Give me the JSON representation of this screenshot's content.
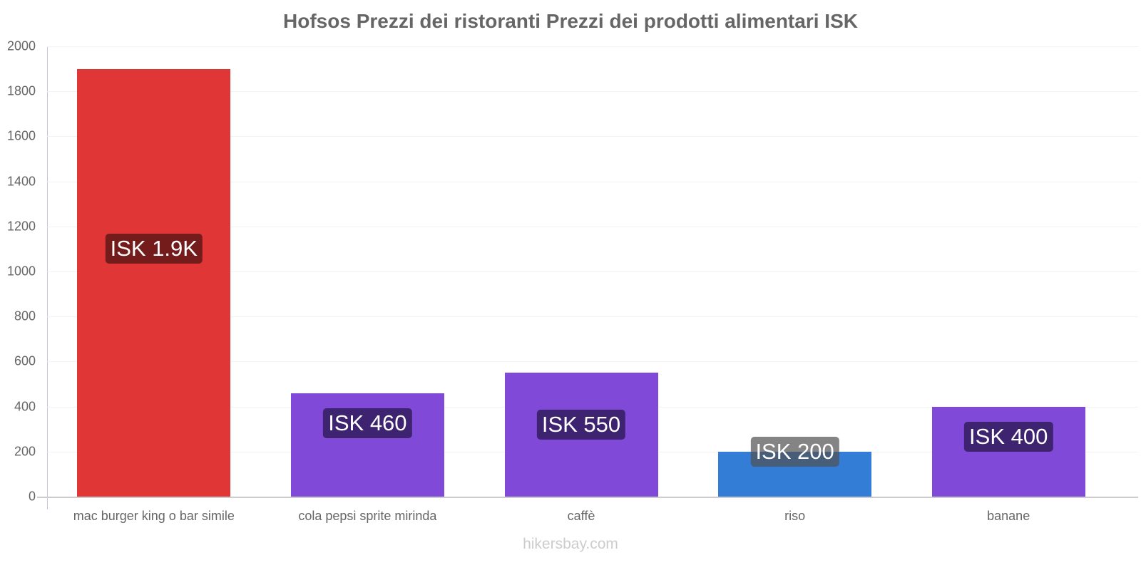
{
  "chart_data": {
    "type": "bar",
    "title": "Hofsos Prezzi dei ristoranti Prezzi dei prodotti alimentari ISK",
    "xlabel": "",
    "ylabel": "",
    "ylim": [
      0,
      2000
    ],
    "yticks": [
      0,
      200,
      400,
      600,
      800,
      1000,
      1200,
      1400,
      1600,
      1800,
      2000
    ],
    "grid": true,
    "legend": null,
    "categories": [
      "mac burger king o bar simile",
      "cola pepsi sprite mirinda",
      "caffè",
      "riso",
      "banane"
    ],
    "values": [
      1900,
      460,
      550,
      200,
      400
    ],
    "data_labels": [
      "ISK 1.9K",
      "ISK 460",
      "ISK 550",
      "ISK 200",
      "ISK 400"
    ],
    "bar_colors": [
      "#e03636",
      "#8049d8",
      "#8049d8",
      "#347dd6",
      "#8049d8"
    ],
    "label_bg_colors": [
      "#741b1b",
      "#3e2470",
      "#3e2470",
      "#1e3f6d",
      "#3e2470"
    ]
  },
  "footer": {
    "watermark": "hikersbay.com"
  }
}
